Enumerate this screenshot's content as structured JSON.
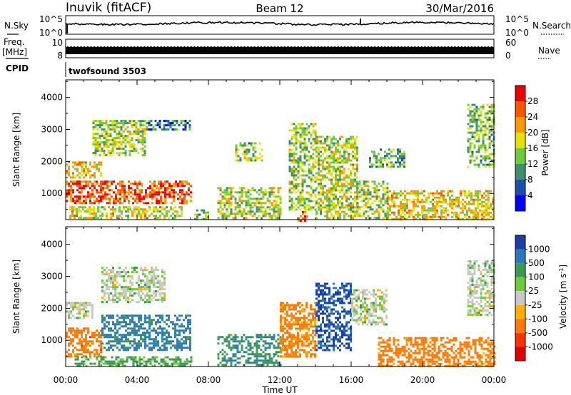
{
  "header": {
    "station": "Inuvik (fitACF)",
    "beam": "Beam 12",
    "date": "30/Mar/2016"
  },
  "top_panels": {
    "nsky_label": "N.Sky",
    "nsky_ticks": [
      "10^5",
      "10^0"
    ],
    "nsearch_label": "N.Search",
    "nsearch_ticks": [
      "10^5",
      "10^0"
    ],
    "freq_label_1": "Freq.",
    "freq_label_2": "[MHz]",
    "freq_ticks": [
      "10",
      "8"
    ],
    "nave_label": "Nave",
    "nave_ticks": [
      "60",
      "0"
    ],
    "cpid_label": "CPID",
    "cpid_value": "twofsound 3503"
  },
  "colors": {
    "power_scale": [
      "#0000ff",
      "#1a4fb0",
      "#3f8f6a",
      "#6ecc3a",
      "#e8e000",
      "#ff9900",
      "#ff5500",
      "#ee0000"
    ],
    "velocity_scale": [
      "#1a3fa8",
      "#2a7ab8",
      "#3a9a50",
      "#6ccc3c",
      "#c8c8c8",
      "#ffb000",
      "#ff7a00",
      "#ff3000",
      "#e00000"
    ]
  },
  "chart_data": [
    {
      "type": "heatmap",
      "panel": "power",
      "ylabel": "Slant Range [km]",
      "x_ticks": [
        "00:00",
        "04:00",
        "08:00",
        "12:00",
        "16:00",
        "20:00",
        "00:00"
      ],
      "xlim_hours": [
        0,
        24
      ],
      "y_ticks": [
        1000,
        2000,
        3000,
        4000
      ],
      "ylim_km": [
        180,
        4550
      ],
      "colorbar_label": "Power [dB]",
      "colorbar_ticks": [
        4,
        8,
        12,
        16,
        20,
        24,
        28
      ],
      "clim": [
        0,
        30
      ],
      "regions": [
        {
          "h0": 0.0,
          "h1": 7.0,
          "r0": 700,
          "r1": 1400,
          "v": 25
        },
        {
          "h0": 0.0,
          "h1": 2.0,
          "r0": 1500,
          "r1": 2000,
          "v": 18
        },
        {
          "h0": 0.2,
          "h1": 6.5,
          "r0": 250,
          "r1": 600,
          "v": 16
        },
        {
          "h0": 1.5,
          "h1": 4.5,
          "r0": 2200,
          "r1": 3300,
          "v": 14
        },
        {
          "h0": 4.5,
          "h1": 7.0,
          "r0": 3000,
          "r1": 3300,
          "v": 8
        },
        {
          "h0": 7.2,
          "h1": 8.0,
          "r0": 200,
          "r1": 500,
          "v": 12
        },
        {
          "h0": 8.5,
          "h1": 12.0,
          "r0": 250,
          "r1": 1200,
          "v": 15
        },
        {
          "h0": 9.5,
          "h1": 11.0,
          "r0": 2000,
          "r1": 2600,
          "v": 13
        },
        {
          "h0": 12.5,
          "h1": 14.0,
          "r0": 500,
          "r1": 3200,
          "v": 14
        },
        {
          "h0": 13.0,
          "h1": 13.5,
          "r0": 180,
          "r1": 450,
          "v": 26
        },
        {
          "h0": 14.0,
          "h1": 16.3,
          "r0": 250,
          "r1": 2800,
          "v": 15
        },
        {
          "h0": 16.3,
          "h1": 18.0,
          "r0": 250,
          "r1": 1400,
          "v": 14
        },
        {
          "h0": 17.0,
          "h1": 19.0,
          "r0": 1800,
          "r1": 2400,
          "v": 11
        },
        {
          "h0": 18.0,
          "h1": 24.0,
          "r0": 200,
          "r1": 1100,
          "v": 18
        },
        {
          "h0": 22.5,
          "h1": 24.0,
          "r0": 1800,
          "r1": 3800,
          "v": 13
        }
      ]
    },
    {
      "type": "heatmap",
      "panel": "velocity",
      "ylabel": "Slant Range [km]",
      "xlabel": "Time UT",
      "x_ticks": [
        "00:00",
        "04:00",
        "08:00",
        "12:00",
        "16:00",
        "20:00",
        "00:00"
      ],
      "xlim_hours": [
        0,
        24
      ],
      "y_ticks": [
        1000,
        2000,
        3000,
        4000
      ],
      "ylim_km": [
        180,
        4550
      ],
      "colorbar_label": "Velocity [m s^-1]",
      "colorbar_ticks": [
        "1000",
        "500",
        "100",
        "25",
        "-25",
        "-100",
        "-500",
        "-1000"
      ],
      "regions": [
        {
          "h0": 0.0,
          "h1": 2.0,
          "r0": 500,
          "r1": 1400,
          "v": -300
        },
        {
          "h0": 2.0,
          "h1": 7.0,
          "r0": 700,
          "r1": 1800,
          "v": 150
        },
        {
          "h0": 0.5,
          "h1": 7.0,
          "r0": 200,
          "r1": 500,
          "v": 40
        },
        {
          "h0": 2.0,
          "h1": 5.5,
          "r0": 2200,
          "r1": 3300,
          "v": 0
        },
        {
          "h0": 0.0,
          "h1": 1.5,
          "r0": 1700,
          "r1": 2200,
          "v": 0
        },
        {
          "h0": 8.5,
          "h1": 12.0,
          "r0": 250,
          "r1": 1200,
          "v": 80
        },
        {
          "h0": 12.0,
          "h1": 14.0,
          "r0": 500,
          "r1": 2200,
          "v": -200
        },
        {
          "h0": 14.0,
          "h1": 16.0,
          "r0": 700,
          "r1": 2800,
          "v": 600
        },
        {
          "h0": 16.0,
          "h1": 18.0,
          "r0": 1500,
          "r1": 2600,
          "v": 0
        },
        {
          "h0": 17.5,
          "h1": 24.0,
          "r0": 200,
          "r1": 1100,
          "v": -250
        },
        {
          "h0": 22.5,
          "h1": 24.0,
          "r0": 1800,
          "r1": 3500,
          "v": 0
        }
      ]
    }
  ]
}
